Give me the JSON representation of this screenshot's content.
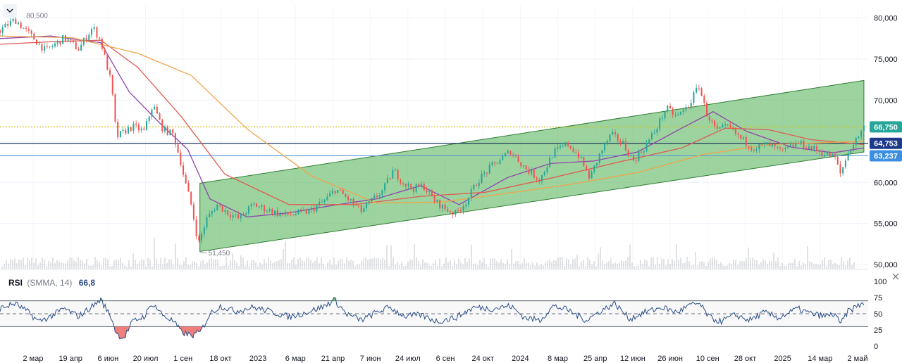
{
  "chart_data": {
    "type": "candlestick",
    "price_axis": {
      "ticks": [
        "80,000",
        "75,000",
        "70,000",
        "65,000",
        "60,000",
        "55,000",
        "50,000"
      ],
      "tick_values": [
        80000,
        75000,
        70000,
        65000,
        60000,
        55000,
        50000
      ],
      "range": [
        49500,
        81500
      ]
    },
    "time_axis": {
      "labels": [
        "2 мар",
        "19 апр",
        "6 июн",
        "20 июл",
        "1 сен",
        "18 окт",
        "2023",
        "6 мар",
        "21 апр",
        "7 июн",
        "24 июл",
        "6 сен",
        "24 окт",
        "2024",
        "8 мар",
        "25 апр",
        "12 июн",
        "26 июн",
        "10 сен",
        "28 окт",
        "2025",
        "14 мар",
        "2 май"
      ],
      "range_dates": [
        "2022-01-20",
        "2025-05-20"
      ]
    },
    "price_badges": [
      {
        "label": "66,750",
        "value": 66750,
        "color": "#26a69a"
      },
      {
        "label": "64,753",
        "value": 64753,
        "color": "#1e3a8a"
      },
      {
        "label": "63,237",
        "value": 63237,
        "color": "#3d8ee0"
      }
    ],
    "horizontal_levels": [
      {
        "value": 66750,
        "style": "dotted",
        "color": "#d4c21a"
      },
      {
        "value": 64753,
        "style": "solid",
        "color": "#1e3a5f"
      },
      {
        "value": 63237,
        "style": "solid",
        "color": "#5b9bd5"
      }
    ],
    "annotations": [
      {
        "text": "80,500",
        "date": "2022-02-10",
        "value": 80500,
        "kind": "high"
      },
      {
        "text": "51,450",
        "date": "2022-10-25",
        "value": 51450,
        "kind": "low"
      }
    ],
    "trend_channel": {
      "color": "#4caf50",
      "lower": [
        {
          "date": "2022-10-27",
          "value": 51600
        },
        {
          "date": "2025-05-14",
          "value": 63700
        }
      ],
      "upper": [
        {
          "date": "2022-10-27",
          "value": 59900
        },
        {
          "date": "2025-05-14",
          "value": 72400
        }
      ]
    },
    "price_series": [
      {
        "date": "2022-01-20",
        "value": 78500
      },
      {
        "date": "2022-02-10",
        "value": 79800
      },
      {
        "date": "2022-03-05",
        "value": 77800
      },
      {
        "date": "2022-03-25",
        "value": 76000
      },
      {
        "date": "2022-04-20",
        "value": 77600
      },
      {
        "date": "2022-05-10",
        "value": 76200
      },
      {
        "date": "2022-05-30",
        "value": 78900
      },
      {
        "date": "2022-06-10",
        "value": 77200
      },
      {
        "date": "2022-06-25",
        "value": 72000
      },
      {
        "date": "2022-07-02",
        "value": 65500
      },
      {
        "date": "2022-07-15",
        "value": 66300
      },
      {
        "date": "2022-07-25",
        "value": 66800
      },
      {
        "date": "2022-08-10",
        "value": 66200
      },
      {
        "date": "2022-08-22",
        "value": 69500
      },
      {
        "date": "2022-09-05",
        "value": 66500
      },
      {
        "date": "2022-09-20",
        "value": 65800
      },
      {
        "date": "2022-09-30",
        "value": 62500
      },
      {
        "date": "2022-10-05",
        "value": 60500
      },
      {
        "date": "2022-10-15",
        "value": 57200
      },
      {
        "date": "2022-10-25",
        "value": 52500
      },
      {
        "date": "2022-11-05",
        "value": 55500
      },
      {
        "date": "2022-11-20",
        "value": 57300
      },
      {
        "date": "2022-12-05",
        "value": 56300
      },
      {
        "date": "2022-12-20",
        "value": 55600
      },
      {
        "date": "2023-01-10",
        "value": 57300
      },
      {
        "date": "2023-02-01",
        "value": 56600
      },
      {
        "date": "2023-02-20",
        "value": 56000
      },
      {
        "date": "2023-03-10",
        "value": 56200
      },
      {
        "date": "2023-03-30",
        "value": 56500
      },
      {
        "date": "2023-04-20",
        "value": 57800
      },
      {
        "date": "2023-05-05",
        "value": 59200
      },
      {
        "date": "2023-05-25",
        "value": 57800
      },
      {
        "date": "2023-06-10",
        "value": 56500
      },
      {
        "date": "2023-06-25",
        "value": 57800
      },
      {
        "date": "2023-07-10",
        "value": 59000
      },
      {
        "date": "2023-07-25",
        "value": 61500
      },
      {
        "date": "2023-08-05",
        "value": 60200
      },
      {
        "date": "2023-08-20",
        "value": 59200
      },
      {
        "date": "2023-09-05",
        "value": 59600
      },
      {
        "date": "2023-09-20",
        "value": 57800
      },
      {
        "date": "2023-10-05",
        "value": 56800
      },
      {
        "date": "2023-10-20",
        "value": 56200
      },
      {
        "date": "2023-11-05",
        "value": 57800
      },
      {
        "date": "2023-11-20",
        "value": 60200
      },
      {
        "date": "2023-12-10",
        "value": 62000
      },
      {
        "date": "2024-01-05",
        "value": 63800
      },
      {
        "date": "2024-01-25",
        "value": 61800
      },
      {
        "date": "2024-02-15",
        "value": 60300
      },
      {
        "date": "2024-03-05",
        "value": 63600
      },
      {
        "date": "2024-03-25",
        "value": 64700
      },
      {
        "date": "2024-04-10",
        "value": 63200
      },
      {
        "date": "2024-04-25",
        "value": 60500
      },
      {
        "date": "2024-05-10",
        "value": 63600
      },
      {
        "date": "2024-05-25",
        "value": 65800
      },
      {
        "date": "2024-06-10",
        "value": 64800
      },
      {
        "date": "2024-06-25",
        "value": 62600
      },
      {
        "date": "2024-07-10",
        "value": 64200
      },
      {
        "date": "2024-07-25",
        "value": 66200
      },
      {
        "date": "2024-08-10",
        "value": 69000
      },
      {
        "date": "2024-08-25",
        "value": 68000
      },
      {
        "date": "2024-09-10",
        "value": 69300
      },
      {
        "date": "2024-09-25",
        "value": 71800
      },
      {
        "date": "2024-10-05",
        "value": 68500
      },
      {
        "date": "2024-10-20",
        "value": 66200
      },
      {
        "date": "2024-11-05",
        "value": 66800
      },
      {
        "date": "2024-11-20",
        "value": 65500
      },
      {
        "date": "2024-12-10",
        "value": 64200
      },
      {
        "date": "2024-12-30",
        "value": 64600
      },
      {
        "date": "2025-01-20",
        "value": 63700
      },
      {
        "date": "2025-02-10",
        "value": 64800
      },
      {
        "date": "2025-03-01",
        "value": 64200
      },
      {
        "date": "2025-03-20",
        "value": 63500
      },
      {
        "date": "2025-04-05",
        "value": 63000
      },
      {
        "date": "2025-04-10",
        "value": 60800
      },
      {
        "date": "2025-04-22",
        "value": 63600
      },
      {
        "date": "2025-05-05",
        "value": 65500
      },
      {
        "date": "2025-05-14",
        "value": 66750
      }
    ],
    "moving_averages": [
      {
        "color": "#8e44ad",
        "points": [
          {
            "date": "2022-01-20",
            "value": 77500
          },
          {
            "date": "2022-04-01",
            "value": 77800
          },
          {
            "date": "2022-06-10",
            "value": 77000
          },
          {
            "date": "2022-07-20",
            "value": 71000
          },
          {
            "date": "2022-09-01",
            "value": 67200
          },
          {
            "date": "2022-10-10",
            "value": 64000
          },
          {
            "date": "2022-11-10",
            "value": 58000
          },
          {
            "date": "2023-01-01",
            "value": 55800
          },
          {
            "date": "2023-03-01",
            "value": 56300
          },
          {
            "date": "2023-05-01",
            "value": 57200
          },
          {
            "date": "2023-07-01",
            "value": 58000
          },
          {
            "date": "2023-09-01",
            "value": 59600
          },
          {
            "date": "2023-10-25",
            "value": 57300
          },
          {
            "date": "2024-01-01",
            "value": 60600
          },
          {
            "date": "2024-03-01",
            "value": 62300
          },
          {
            "date": "2024-05-01",
            "value": 62600
          },
          {
            "date": "2024-07-01",
            "value": 63700
          },
          {
            "date": "2024-09-01",
            "value": 66600
          },
          {
            "date": "2024-10-15",
            "value": 68600
          },
          {
            "date": "2024-12-01",
            "value": 66200
          },
          {
            "date": "2025-02-01",
            "value": 64300
          },
          {
            "date": "2025-04-01",
            "value": 63600
          },
          {
            "date": "2025-05-14",
            "value": 64200
          }
        ]
      },
      {
        "color": "#e05a4f",
        "points": [
          {
            "date": "2022-01-20",
            "value": 76800
          },
          {
            "date": "2022-04-01",
            "value": 77100
          },
          {
            "date": "2022-06-10",
            "value": 77300
          },
          {
            "date": "2022-08-01",
            "value": 74000
          },
          {
            "date": "2022-10-01",
            "value": 68000
          },
          {
            "date": "2022-12-01",
            "value": 61000
          },
          {
            "date": "2023-03-01",
            "value": 57300
          },
          {
            "date": "2023-06-01",
            "value": 57300
          },
          {
            "date": "2023-09-01",
            "value": 58300
          },
          {
            "date": "2023-12-01",
            "value": 58800
          },
          {
            "date": "2024-03-01",
            "value": 60500
          },
          {
            "date": "2024-06-01",
            "value": 62400
          },
          {
            "date": "2024-09-01",
            "value": 64200
          },
          {
            "date": "2024-11-01",
            "value": 66600
          },
          {
            "date": "2025-01-01",
            "value": 66400
          },
          {
            "date": "2025-03-01",
            "value": 65200
          },
          {
            "date": "2025-05-14",
            "value": 64600
          }
        ]
      },
      {
        "color": "#f0a44b",
        "points": [
          {
            "date": "2022-01-20",
            "value": 77800
          },
          {
            "date": "2022-05-01",
            "value": 77600
          },
          {
            "date": "2022-08-01",
            "value": 75700
          },
          {
            "date": "2022-10-15",
            "value": 73000
          },
          {
            "date": "2023-01-01",
            "value": 66500
          },
          {
            "date": "2023-04-01",
            "value": 60800
          },
          {
            "date": "2023-07-01",
            "value": 57500
          },
          {
            "date": "2023-10-01",
            "value": 57600
          },
          {
            "date": "2024-01-01",
            "value": 58700
          },
          {
            "date": "2024-04-01",
            "value": 59800
          },
          {
            "date": "2024-07-01",
            "value": 61200
          },
          {
            "date": "2024-10-01",
            "value": 63400
          },
          {
            "date": "2025-01-01",
            "value": 64600
          },
          {
            "date": "2025-05-14",
            "value": 65000
          }
        ]
      }
    ],
    "rsi": {
      "label": "RSI",
      "params": "(SMMA, 14)",
      "value": "66,8",
      "axis_ticks": [
        "100",
        "75",
        "50",
        "25",
        "0"
      ],
      "tick_values": [
        100,
        75,
        50,
        25,
        0
      ],
      "bands": [
        70,
        50,
        30
      ],
      "overbought_color": "#4caf50",
      "oversold_color": "#ef5350",
      "line_color": "#2a4d86",
      "series": [
        {
          "date": "2022-01-20",
          "value": 58
        },
        {
          "date": "2022-02-10",
          "value": 66
        },
        {
          "date": "2022-03-01",
          "value": 52
        },
        {
          "date": "2022-03-15",
          "value": 38
        },
        {
          "date": "2022-04-01",
          "value": 46
        },
        {
          "date": "2022-04-20",
          "value": 58
        },
        {
          "date": "2022-05-10",
          "value": 46
        },
        {
          "date": "2022-05-30",
          "value": 62
        },
        {
          "date": "2022-06-10",
          "value": 72
        },
        {
          "date": "2022-06-25",
          "value": 44
        },
        {
          "date": "2022-07-02",
          "value": 20
        },
        {
          "date": "2022-07-12",
          "value": 12
        },
        {
          "date": "2022-07-25",
          "value": 38
        },
        {
          "date": "2022-08-10",
          "value": 46
        },
        {
          "date": "2022-08-22",
          "value": 66
        },
        {
          "date": "2022-09-05",
          "value": 48
        },
        {
          "date": "2022-09-20",
          "value": 38
        },
        {
          "date": "2022-10-01",
          "value": 22
        },
        {
          "date": "2022-10-15",
          "value": 16
        },
        {
          "date": "2022-10-28",
          "value": 22
        },
        {
          "date": "2022-11-10",
          "value": 50
        },
        {
          "date": "2022-11-25",
          "value": 62
        },
        {
          "date": "2022-12-15",
          "value": 54
        },
        {
          "date": "2023-01-10",
          "value": 60
        },
        {
          "date": "2023-02-01",
          "value": 54
        },
        {
          "date": "2023-03-01",
          "value": 45
        },
        {
          "date": "2023-03-25",
          "value": 52
        },
        {
          "date": "2023-04-20",
          "value": 62
        },
        {
          "date": "2023-05-03",
          "value": 72
        },
        {
          "date": "2023-05-20",
          "value": 50
        },
        {
          "date": "2023-06-10",
          "value": 40
        },
        {
          "date": "2023-07-01",
          "value": 52
        },
        {
          "date": "2023-07-20",
          "value": 60
        },
        {
          "date": "2023-08-10",
          "value": 46
        },
        {
          "date": "2023-09-01",
          "value": 48
        },
        {
          "date": "2023-09-25",
          "value": 38
        },
        {
          "date": "2023-10-20",
          "value": 44
        },
        {
          "date": "2023-11-15",
          "value": 60
        },
        {
          "date": "2023-12-10",
          "value": 58
        },
        {
          "date": "2024-01-05",
          "value": 62
        },
        {
          "date": "2024-01-25",
          "value": 44
        },
        {
          "date": "2024-02-15",
          "value": 40
        },
        {
          "date": "2024-03-05",
          "value": 62
        },
        {
          "date": "2024-03-25",
          "value": 56
        },
        {
          "date": "2024-04-20",
          "value": 40
        },
        {
          "date": "2024-05-10",
          "value": 54
        },
        {
          "date": "2024-05-30",
          "value": 66
        },
        {
          "date": "2024-06-20",
          "value": 42
        },
        {
          "date": "2024-07-10",
          "value": 52
        },
        {
          "date": "2024-08-05",
          "value": 60
        },
        {
          "date": "2024-08-25",
          "value": 52
        },
        {
          "date": "2024-09-10",
          "value": 62
        },
        {
          "date": "2024-09-25",
          "value": 66
        },
        {
          "date": "2024-10-10",
          "value": 44
        },
        {
          "date": "2024-10-25",
          "value": 38
        },
        {
          "date": "2024-11-15",
          "value": 48
        },
        {
          "date": "2024-12-05",
          "value": 40
        },
        {
          "date": "2024-12-25",
          "value": 52
        },
        {
          "date": "2025-01-15",
          "value": 44
        },
        {
          "date": "2025-02-10",
          "value": 58
        },
        {
          "date": "2025-03-01",
          "value": 50
        },
        {
          "date": "2025-03-20",
          "value": 46
        },
        {
          "date": "2025-04-05",
          "value": 50
        },
        {
          "date": "2025-04-10",
          "value": 32
        },
        {
          "date": "2025-04-22",
          "value": 54
        },
        {
          "date": "2025-05-05",
          "value": 62
        },
        {
          "date": "2025-05-14",
          "value": 66.8
        }
      ]
    }
  },
  "ui": {
    "close_icon": "close-icon",
    "collapse_icon": "chevron-down-icon"
  }
}
